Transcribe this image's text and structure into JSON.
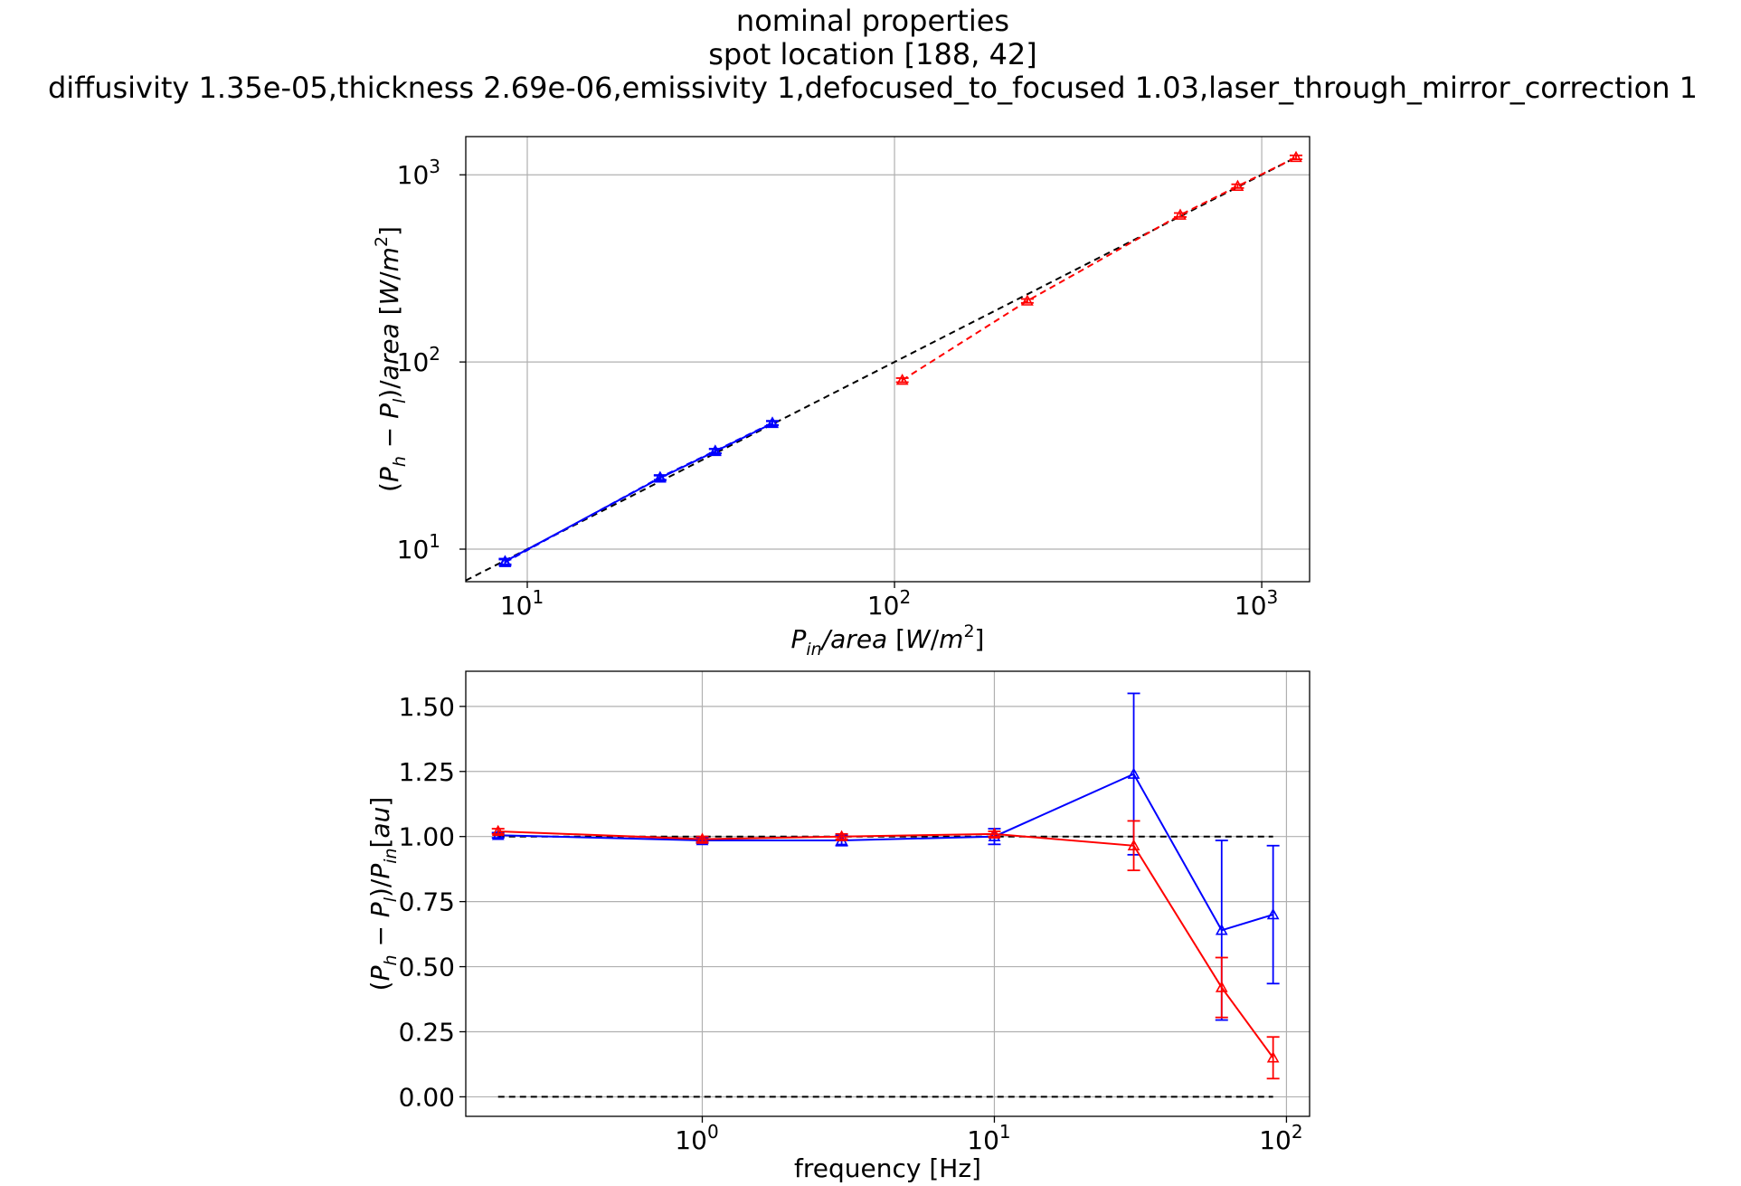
{
  "figure": {
    "title_lines": [
      "nominal properties",
      "spot location [188, 42]",
      "diffusivity 1.35e-05,thickness 2.69e-06,emissivity 1,defocused_to_focused 1.03,laser_through_mirror_correction 1"
    ]
  },
  "chart_data": [
    {
      "type": "line",
      "xscale": "log",
      "yscale": "log",
      "xlim": [
        6.8,
        1350
      ],
      "ylim": [
        6.7,
        1600
      ],
      "grid": true,
      "xlabel": "P_in/area [W/m^2]",
      "ylabel": "(P_h − P_l)/area [W/m^2]",
      "x_ticks": [
        {
          "value": 10,
          "label": "10",
          "exp": "1"
        },
        {
          "value": 100,
          "label": "10",
          "exp": "2"
        },
        {
          "value": 1000,
          "label": "10",
          "exp": "3"
        }
      ],
      "y_ticks": [
        {
          "value": 10,
          "label": "10",
          "exp": "1"
        },
        {
          "value": 100,
          "label": "10",
          "exp": "2"
        },
        {
          "value": 1000,
          "label": "10",
          "exp": "3"
        }
      ],
      "reference_line": {
        "x": [
          6.8,
          1250
        ],
        "y": [
          6.8,
          1250
        ],
        "color": "#000000",
        "dash": true
      },
      "series": [
        {
          "color": "#0000ff",
          "style": "solid",
          "marker": "triangle",
          "x": [
            8.7,
            23,
            32.5,
            46.5
          ],
          "y": [
            8.6,
            24,
            33.3,
            47
          ],
          "yerr": [
            0.3,
            0.7,
            0.9,
            1.2
          ]
        },
        {
          "color": "#0000ff",
          "style": "dashed",
          "marker": "triangle",
          "x": [
            8.7,
            23,
            32.5,
            46.5
          ],
          "y": [
            8.5,
            24.2,
            33.5,
            47.3
          ],
          "yerr": [
            0.3,
            0.7,
            0.9,
            1.2
          ]
        },
        {
          "color": "#ff0000",
          "style": "dashed",
          "marker": "triangle",
          "x": [
            105,
            230,
            600,
            860,
            1240
          ],
          "y": [
            80,
            212,
            610,
            870,
            1240
          ],
          "yerr": [
            2,
            5,
            15,
            20,
            30
          ]
        }
      ]
    },
    {
      "type": "line",
      "xscale": "log",
      "yscale": "linear",
      "xlim": [
        0.155,
        120
      ],
      "ylim": [
        -0.075,
        1.635
      ],
      "grid": true,
      "xlabel": "frequency [Hz]",
      "ylabel": "(P_h − P_l)/P_in[au]",
      "x_ticks": [
        {
          "value": 1,
          "label": "10",
          "exp": "0"
        },
        {
          "value": 10,
          "label": "10",
          "exp": "1"
        },
        {
          "value": 100,
          "label": "10",
          "exp": "2"
        }
      ],
      "y_ticks": [
        {
          "value": 0.0,
          "label": "0.00"
        },
        {
          "value": 0.25,
          "label": "0.25"
        },
        {
          "value": 0.5,
          "label": "0.50"
        },
        {
          "value": 0.75,
          "label": "0.75"
        },
        {
          "value": 1.0,
          "label": "1.00"
        },
        {
          "value": 1.25,
          "label": "1.25"
        },
        {
          "value": 1.5,
          "label": "1.50"
        }
      ],
      "reference_lines": [
        {
          "y": 1.0,
          "x": [
            0.2,
            90
          ],
          "color": "#000000",
          "dash": true
        },
        {
          "y": 0.0,
          "x": [
            0.2,
            90
          ],
          "color": "#000000",
          "dash": true
        }
      ],
      "series": [
        {
          "color": "#0000ff",
          "marker": "triangle",
          "x": [
            0.2,
            1,
            3,
            10,
            30,
            60,
            90
          ],
          "y": [
            1.005,
            0.985,
            0.985,
            1.0,
            1.24,
            0.64,
            0.7
          ],
          "yerr": [
            0.01,
            0.01,
            0.02,
            0.03,
            0.31,
            0.345,
            0.265
          ]
        },
        {
          "color": "#ff0000",
          "marker": "triangle",
          "x": [
            0.2,
            1,
            3,
            10,
            30,
            60,
            90
          ],
          "y": [
            1.02,
            0.99,
            1.0,
            1.01,
            0.965,
            0.42,
            0.15
          ],
          "yerr": [
            0.01,
            0.01,
            0.01,
            0.01,
            0.095,
            0.115,
            0.08
          ]
        }
      ]
    }
  ]
}
